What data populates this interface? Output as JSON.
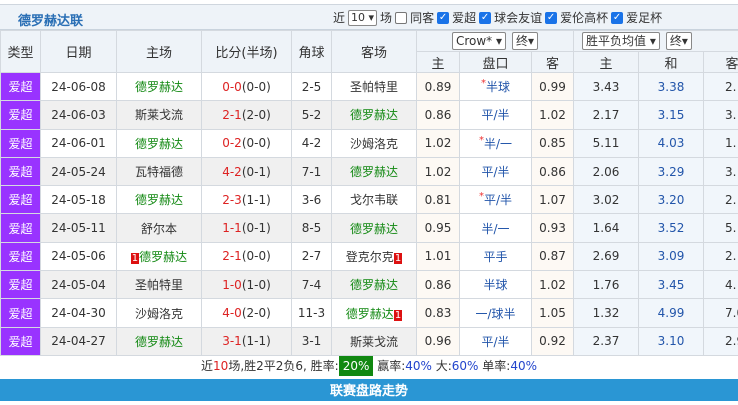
{
  "title": "德罗赫达联",
  "filters": {
    "near_label": "近",
    "count": "10",
    "count_suffix": "场",
    "same_away": "同客",
    "leagues": [
      "爱超",
      "球会友谊",
      "爱伦高杯",
      "爱足杯"
    ]
  },
  "headers": {
    "type": "类型",
    "date": "日期",
    "home": "主场",
    "score": "比分(半场)",
    "corner": "角球",
    "away": "客场",
    "company": "Crow*",
    "phase1": "终",
    "odds_type": "胜平负均值",
    "phase2": "终",
    "ah_home": "主",
    "ah_line": "盘口",
    "ah_away": "客",
    "eu_home": "主",
    "eu_draw": "和",
    "eu_away": "客"
  },
  "rows": [
    {
      "type": "爱超",
      "date": "24-06-08",
      "home": "德罗赫达",
      "home_team": true,
      "home_rc": "",
      "score": "0-0",
      "half": "(0-0)",
      "corner": "2-5",
      "away": "圣帕特里",
      "away_team": false,
      "away_rc": "",
      "ah_h": "0.89",
      "star": "*",
      "line": "半球",
      "ah_a": "0.99",
      "eu_h": "3.43",
      "eu_d": "3.38",
      "eu_a": "2."
    },
    {
      "type": "爱超",
      "date": "24-06-03",
      "home": "斯莱戈流",
      "home_team": false,
      "home_rc": "",
      "score": "2-1",
      "half": "(2-0)",
      "corner": "5-2",
      "away": "德罗赫达",
      "away_team": true,
      "away_rc": "",
      "ah_h": "0.86",
      "star": "",
      "line": "平/半",
      "ah_a": "1.02",
      "eu_h": "2.17",
      "eu_d": "3.15",
      "eu_a": "3."
    },
    {
      "type": "爱超",
      "date": "24-06-01",
      "home": "德罗赫达",
      "home_team": true,
      "home_rc": "",
      "score": "0-2",
      "half": "(0-0)",
      "corner": "4-2",
      "away": "沙姆洛克",
      "away_team": false,
      "away_rc": "",
      "ah_h": "1.02",
      "star": "*",
      "line": "半/一",
      "ah_a": "0.85",
      "eu_h": "5.11",
      "eu_d": "4.03",
      "eu_a": "1."
    },
    {
      "type": "爱超",
      "date": "24-05-24",
      "home": "瓦特福德",
      "home_team": false,
      "home_rc": "",
      "score": "4-2",
      "half": "(0-1)",
      "corner": "7-1",
      "away": "德罗赫达",
      "away_team": true,
      "away_rc": "",
      "ah_h": "1.02",
      "star": "",
      "line": "平/半",
      "ah_a": "0.86",
      "eu_h": "2.06",
      "eu_d": "3.29",
      "eu_a": "3."
    },
    {
      "type": "爱超",
      "date": "24-05-18",
      "home": "德罗赫达",
      "home_team": true,
      "home_rc": "",
      "score": "2-3",
      "half": "(1-1)",
      "corner": "3-6",
      "away": "戈尔韦联",
      "away_team": false,
      "away_rc": "",
      "ah_h": "0.81",
      "star": "*",
      "line": "平/半",
      "ah_a": "1.07",
      "eu_h": "3.02",
      "eu_d": "3.20",
      "eu_a": "2."
    },
    {
      "type": "爱超",
      "date": "24-05-11",
      "home": "舒尔本",
      "home_team": false,
      "home_rc": "",
      "score": "1-1",
      "half": "(0-1)",
      "corner": "8-5",
      "away": "德罗赫达",
      "away_team": true,
      "away_rc": "",
      "ah_h": "0.95",
      "star": "",
      "line": "半/一",
      "ah_a": "0.93",
      "eu_h": "1.64",
      "eu_d": "3.52",
      "eu_a": "5."
    },
    {
      "type": "爱超",
      "date": "24-05-06",
      "home": "德罗赫达",
      "home_team": true,
      "home_rc": "1",
      "score": "2-1",
      "half": "(0-0)",
      "corner": "2-7",
      "away": "登克尔克",
      "away_team": false,
      "away_rc": "1",
      "ah_h": "1.01",
      "star": "",
      "line": "平手",
      "ah_a": "0.87",
      "eu_h": "2.69",
      "eu_d": "3.09",
      "eu_a": "2."
    },
    {
      "type": "爱超",
      "date": "24-05-04",
      "home": "圣帕特里",
      "home_team": false,
      "home_rc": "",
      "score": "1-0",
      "half": "(1-0)",
      "corner": "7-4",
      "away": "德罗赫达",
      "away_team": true,
      "away_rc": "",
      "ah_h": "0.86",
      "star": "",
      "line": "半球",
      "ah_a": "1.02",
      "eu_h": "1.76",
      "eu_d": "3.45",
      "eu_a": "4."
    },
    {
      "type": "爱超",
      "date": "24-04-30",
      "home": "沙姆洛克",
      "home_team": false,
      "home_rc": "",
      "score": "4-0",
      "half": "(2-0)",
      "corner": "11-3",
      "away": "德罗赫达",
      "away_team": true,
      "away_rc": "1",
      "ah_h": "0.83",
      "star": "",
      "line": "一/球半",
      "ah_a": "1.05",
      "eu_h": "1.32",
      "eu_d": "4.99",
      "eu_a": "7.0"
    },
    {
      "type": "爱超",
      "date": "24-04-27",
      "home": "德罗赫达",
      "home_team": true,
      "home_rc": "",
      "score": "3-1",
      "half": "(1-1)",
      "corner": "3-1",
      "away": "斯莱戈流",
      "away_team": false,
      "away_rc": "",
      "ah_h": "0.96",
      "star": "",
      "line": "平/半",
      "ah_a": "0.92",
      "eu_h": "2.37",
      "eu_d": "3.10",
      "eu_a": "2.9"
    }
  ],
  "summary": {
    "p1": "近",
    "n": "10",
    "p2": "场,胜2平2负6, 胜率:",
    "win_rate": "20%",
    "p3": " 赢率:",
    "ah_rate": "40%",
    "p4": " 大:",
    "over_rate": "60%",
    "p5": " 单率:",
    "odd_rate": "40%"
  },
  "banner": "联赛盘路走势",
  "colors": {
    "type_bg": "#9933ff",
    "team": "#118811",
    "score": "#dd2222",
    "banner": "#2a96d4"
  }
}
